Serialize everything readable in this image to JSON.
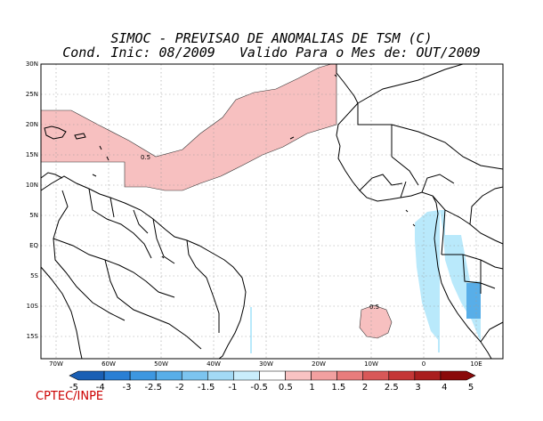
{
  "title": {
    "line1": "SIMOC - PREVISAO DE ANOMALIAS DE TSM (C)",
    "line2": "Cond. Inic: 08/2009   Valido Para o Mes de: OUT/2009"
  },
  "lat_labels": [
    "30N",
    "25N",
    "20N",
    "15N",
    "10N",
    "5N",
    "EQ",
    "5S",
    "10S",
    "15S"
  ],
  "lon_labels": [
    "70W",
    "60W",
    "50W",
    "40W",
    "30W",
    "20W",
    "10W",
    "0",
    "10E"
  ],
  "contour_labels": [
    "0.5",
    "0.5"
  ],
  "colorbar": {
    "ticks": [
      "-5",
      "-4",
      "-3",
      "-2.5",
      "-2",
      "-1.5",
      "-1",
      "-0.5",
      "0.5",
      "1",
      "1.5",
      "2",
      "2.5",
      "3",
      "4",
      "5"
    ],
    "colors": [
      "#1a5fb4",
      "#2a7fd4",
      "#3d97e0",
      "#58aee8",
      "#7cc4ef",
      "#a3daf5",
      "#c9edfb",
      "#ffffff",
      "#f9c3c3",
      "#f2a0a0",
      "#e87c7c",
      "#d85858",
      "#c43636",
      "#a91e1e",
      "#8a0a0a"
    ]
  },
  "footer": "CPTEC/INPE"
}
